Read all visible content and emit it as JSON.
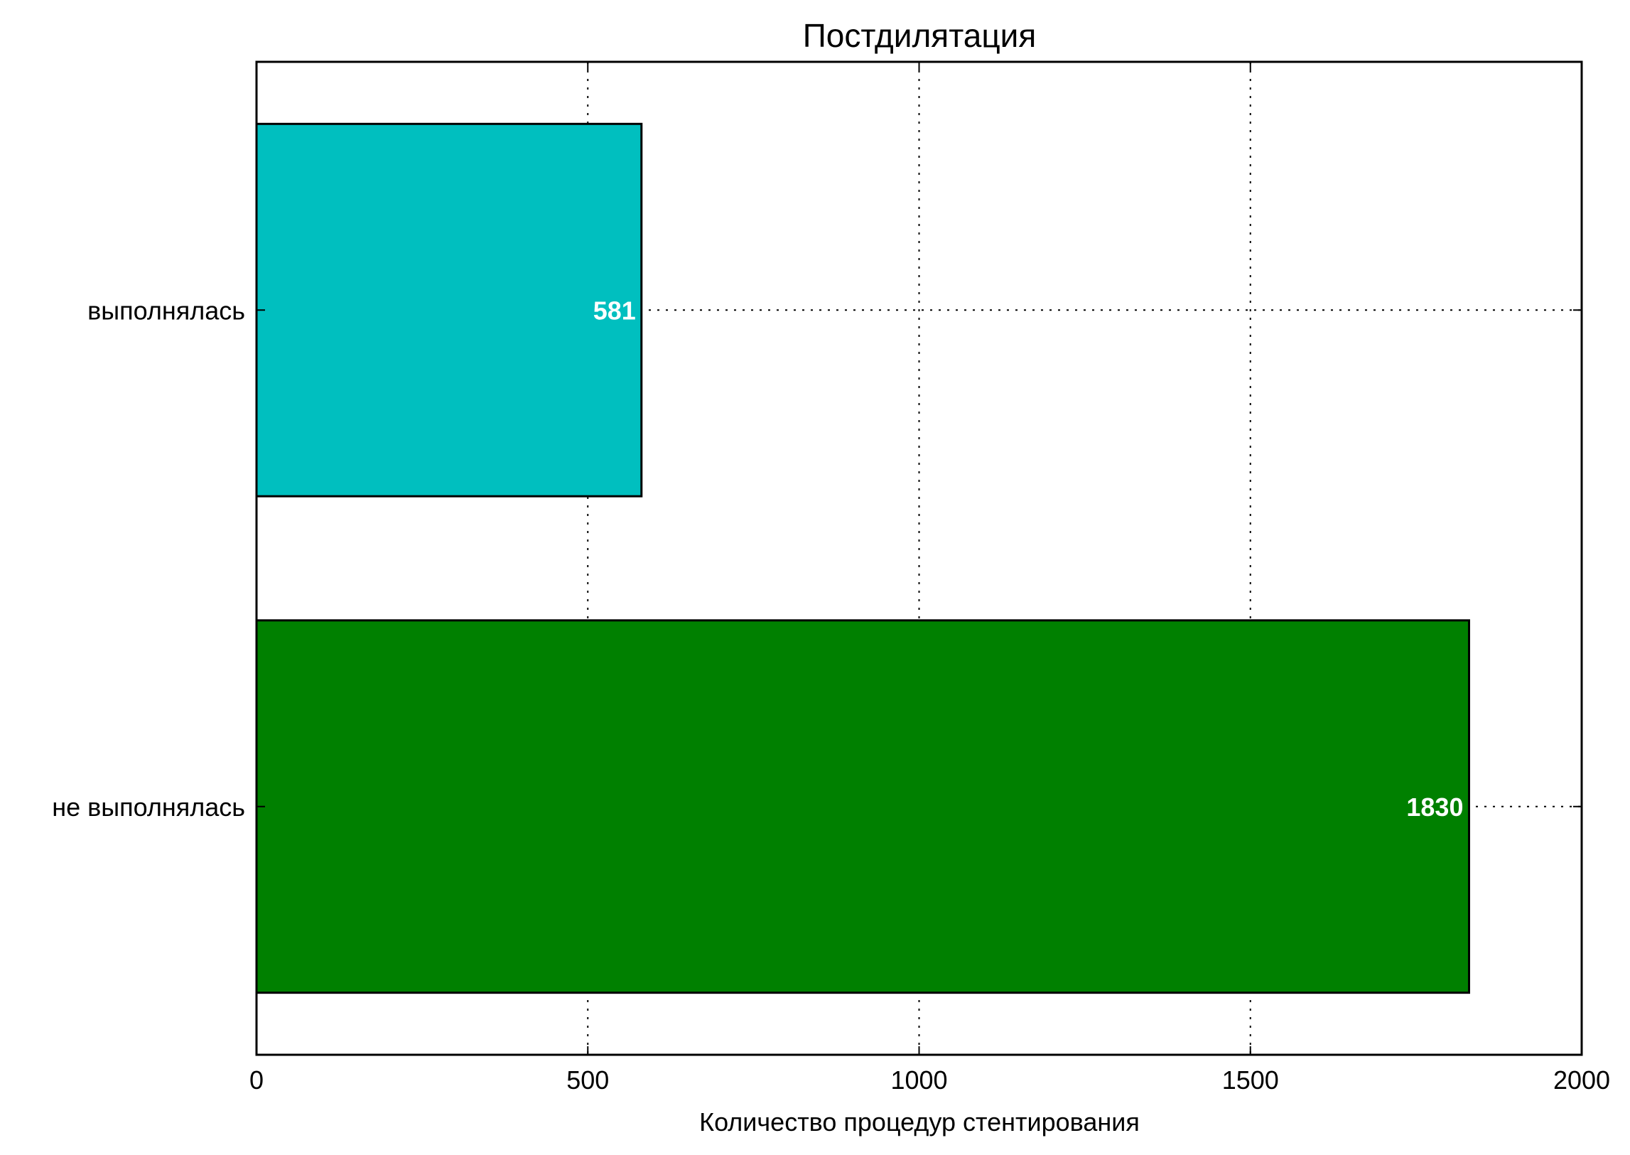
{
  "chart_data": {
    "type": "bar",
    "orientation": "horizontal",
    "title": "Постдилятация",
    "xlabel": "Количество процедур стентирования",
    "ylabel": "",
    "xlim": [
      0,
      2000
    ],
    "xticks": [
      0,
      500,
      1000,
      1500,
      2000
    ],
    "grid": true,
    "categories": [
      "выполнялась",
      "не выполнялась"
    ],
    "values": [
      581,
      1830
    ],
    "data_labels": [
      "581",
      "1830"
    ],
    "colors": [
      "#00bfbf",
      "#008000"
    ]
  }
}
